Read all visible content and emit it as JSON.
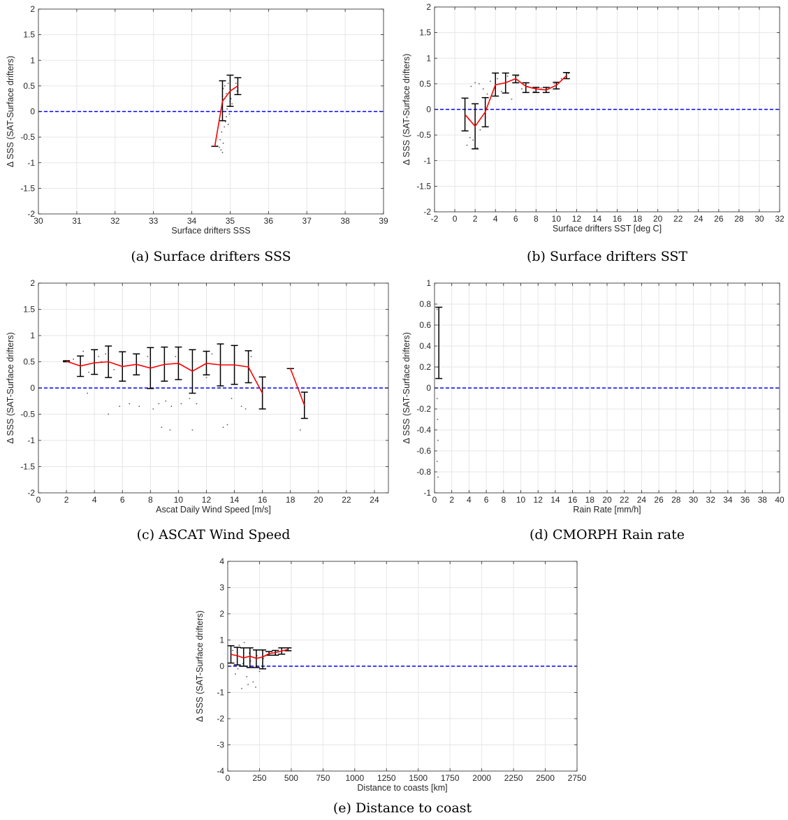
{
  "colors": {
    "mean_line": "#ff0000",
    "zero_line": "#0000ff",
    "error_bar": "#000000",
    "scatter": "#555555",
    "grid": "#e6e6e6",
    "axis": "#262626"
  },
  "chart_data": [
    {
      "id": "a",
      "type": "line",
      "caption": "(a) Surface drifters SSS",
      "xlabel": "Surface drifters SSS",
      "ylabel": "Δ SSS (SAT-Surface drifters)",
      "xlim": [
        30,
        39
      ],
      "ylim": [
        -2,
        2
      ],
      "xticks": [
        30,
        31,
        32,
        33,
        34,
        35,
        36,
        37,
        38,
        39
      ],
      "yticks": [
        -2,
        -1.5,
        -1,
        -0.5,
        0,
        0.5,
        1,
        1.5,
        2
      ],
      "grid": true,
      "zero_line": true,
      "series": [
        {
          "x": [
            34.6,
            34.8,
            35.0,
            35.2
          ],
          "y": [
            -0.68,
            0.2,
            0.4,
            0.5
          ],
          "err_low": [
            -0.68,
            -0.18,
            0.1,
            0.33
          ],
          "err_high": [
            -0.68,
            0.6,
            0.71,
            0.66
          ]
        }
      ],
      "scatter": [
        [
          34.72,
          -0.7
        ],
        [
          34.74,
          -0.55
        ],
        [
          34.76,
          -0.75
        ],
        [
          34.8,
          -0.8
        ],
        [
          34.82,
          -0.62
        ],
        [
          34.78,
          -0.4
        ],
        [
          34.85,
          -0.3
        ],
        [
          34.88,
          -0.2
        ],
        [
          34.9,
          -0.1
        ],
        [
          34.92,
          0.05
        ],
        [
          34.8,
          0.3
        ],
        [
          34.82,
          0.45
        ],
        [
          34.86,
          0.5
        ],
        [
          34.9,
          0.35
        ],
        [
          34.95,
          0.55
        ],
        [
          35.0,
          0.6
        ],
        [
          35.02,
          0.25
        ],
        [
          35.05,
          0.15
        ],
        [
          35.1,
          0.45
        ],
        [
          35.15,
          0.55
        ],
        [
          35.18,
          0.4
        ],
        [
          34.95,
          -0.25
        ],
        [
          34.98,
          -0.05
        ],
        [
          35.0,
          0.2
        ]
      ]
    },
    {
      "id": "b",
      "type": "line",
      "caption": "(b) Surface drifters SST",
      "xlabel": "Surface drifters SST [deg C]",
      "ylabel": "Δ SSS (SAT-Surface drifters)",
      "xlim": [
        -2,
        32
      ],
      "ylim": [
        -2,
        2
      ],
      "xticks": [
        -2,
        0,
        2,
        4,
        6,
        8,
        10,
        12,
        14,
        16,
        18,
        20,
        22,
        24,
        26,
        28,
        30,
        32
      ],
      "yticks": [
        -2,
        -1.5,
        -1,
        -0.5,
        0,
        0.5,
        1,
        1.5,
        2
      ],
      "grid": true,
      "zero_line": true,
      "series": [
        {
          "x": [
            1,
            2,
            3,
            4,
            5,
            6,
            7,
            8,
            9,
            10,
            11
          ],
          "y": [
            -0.1,
            -0.33,
            -0.05,
            0.48,
            0.52,
            0.6,
            0.45,
            0.4,
            0.38,
            0.47,
            0.66
          ],
          "err_low": [
            -0.42,
            -0.77,
            -0.34,
            0.26,
            0.32,
            0.52,
            0.33,
            0.33,
            0.33,
            0.4,
            0.6
          ],
          "err_high": [
            0.22,
            0.11,
            0.23,
            0.71,
            0.71,
            0.67,
            0.52,
            0.43,
            0.43,
            0.53,
            0.72
          ]
        }
      ],
      "scatter": [
        [
          1.2,
          -0.7
        ],
        [
          1.5,
          -0.55
        ],
        [
          1.8,
          -0.6
        ],
        [
          2.2,
          -0.75
        ],
        [
          2.5,
          -0.4
        ],
        [
          1.6,
          0.45
        ],
        [
          2.0,
          0.52
        ],
        [
          2.4,
          0.5
        ],
        [
          2.8,
          0.4
        ],
        [
          3.2,
          0.3
        ],
        [
          3.5,
          0.55
        ],
        [
          4.2,
          0.6
        ],
        [
          4.6,
          0.35
        ],
        [
          5.2,
          0.65
        ],
        [
          5.6,
          0.2
        ],
        [
          6.2,
          0.65
        ],
        [
          6.6,
          0.4
        ],
        [
          7.2,
          0.45
        ],
        [
          7.8,
          0.35
        ],
        [
          8.5,
          0.42
        ],
        [
          9.2,
          0.4
        ],
        [
          9.8,
          0.5
        ],
        [
          10.5,
          0.6
        ],
        [
          11.2,
          0.7
        ],
        [
          1.4,
          -0.2
        ],
        [
          3.0,
          -0.15
        ]
      ]
    },
    {
      "id": "c",
      "type": "line",
      "caption": "(c) ASCAT Wind Speed",
      "xlabel": "Ascat Daily Wind Speed [m/s]",
      "ylabel": "Δ SSS (SAT-Surface drifters)",
      "xlim": [
        0,
        25
      ],
      "ylim": [
        -2,
        2
      ],
      "xticks": [
        0,
        2,
        4,
        6,
        8,
        10,
        12,
        14,
        16,
        18,
        20,
        22,
        24
      ],
      "yticks": [
        -2,
        -1.5,
        -1,
        -0.5,
        0,
        0.5,
        1,
        1.5,
        2
      ],
      "grid": true,
      "zero_line": true,
      "series": [
        {
          "x": [
            2,
            3,
            4,
            5,
            6,
            7,
            8,
            9,
            10,
            11,
            12,
            13,
            14,
            15,
            16
          ],
          "y": [
            0.51,
            0.42,
            0.48,
            0.5,
            0.41,
            0.45,
            0.38,
            0.45,
            0.47,
            0.32,
            0.47,
            0.44,
            0.44,
            0.4,
            -0.1
          ],
          "err_low": [
            0.5,
            0.22,
            0.26,
            0.2,
            0.13,
            0.25,
            -0.01,
            0.13,
            0.16,
            -0.1,
            0.25,
            0.04,
            0.07,
            0.1,
            -0.4
          ],
          "err_high": [
            0.52,
            0.61,
            0.73,
            0.8,
            0.69,
            0.65,
            0.77,
            0.78,
            0.78,
            0.73,
            0.7,
            0.84,
            0.81,
            0.71,
            0.21
          ]
        },
        {
          "x": [
            18,
            19
          ],
          "y": [
            0.37,
            -0.33
          ],
          "err_low": [
            0.37,
            -0.58
          ],
          "err_high": [
            0.37,
            -0.08
          ]
        }
      ],
      "scatter": [
        [
          2.5,
          0.55
        ],
        [
          3.2,
          0.7
        ],
        [
          3.6,
          0.3
        ],
        [
          4.3,
          0.6
        ],
        [
          4.8,
          0.65
        ],
        [
          5.4,
          0.35
        ],
        [
          5.0,
          -0.5
        ],
        [
          5.8,
          -0.35
        ],
        [
          6.5,
          -0.3
        ],
        [
          7.2,
          -0.35
        ],
        [
          7.8,
          0.6
        ],
        [
          8.2,
          -0.4
        ],
        [
          8.6,
          -0.3
        ],
        [
          9.1,
          -0.25
        ],
        [
          9.5,
          -0.35
        ],
        [
          10.2,
          -0.3
        ],
        [
          10.8,
          -0.2
        ],
        [
          11.3,
          -0.3
        ],
        [
          8.8,
          -0.75
        ],
        [
          9.4,
          -0.8
        ],
        [
          11.0,
          -0.8
        ],
        [
          13.2,
          -0.75
        ],
        [
          13.5,
          -0.7
        ],
        [
          12.4,
          0.65
        ],
        [
          13.8,
          -0.2
        ],
        [
          14.5,
          -0.35
        ],
        [
          15.2,
          0.6
        ],
        [
          18.7,
          -0.8
        ],
        [
          3.5,
          -0.1
        ],
        [
          4.5,
          0.5
        ],
        [
          6.0,
          0.55
        ],
        [
          9.8,
          0.6
        ],
        [
          12.0,
          0.2
        ],
        [
          14.8,
          -0.4
        ]
      ]
    },
    {
      "id": "d",
      "type": "line",
      "caption": "(d) CMORPH Rain rate",
      "xlabel": "Rain Rate [mm/h]",
      "ylabel": "Δ SSS (SAT-Surface drifters)",
      "xlim": [
        0,
        40
      ],
      "ylim": [
        -1,
        1
      ],
      "xticks": [
        0,
        2,
        4,
        6,
        8,
        10,
        12,
        14,
        16,
        18,
        20,
        22,
        24,
        26,
        28,
        30,
        32,
        34,
        36,
        38,
        40
      ],
      "yticks": [
        -1,
        -0.8,
        -0.6,
        -0.4,
        -0.2,
        0,
        0.2,
        0.4,
        0.6,
        0.8,
        1
      ],
      "grid": true,
      "zero_line": true,
      "series": [
        {
          "x": [
            0.5
          ],
          "y": [
            0.43
          ],
          "err_low": [
            0.09
          ],
          "err_high": [
            0.77
          ]
        }
      ],
      "scatter": [
        [
          0.3,
          -0.1
        ],
        [
          0.35,
          -0.3
        ],
        [
          0.4,
          -0.5
        ],
        [
          0.3,
          -0.7
        ],
        [
          0.45,
          0.6
        ],
        [
          0.35,
          0.2
        ],
        [
          0.4,
          -0.85
        ],
        [
          0.3,
          0.75
        ]
      ]
    },
    {
      "id": "e",
      "type": "line",
      "caption": "(e) Distance to coast",
      "xlabel": "Distance to coasts [km]",
      "ylabel": "Δ SSS (SAT-Surface drifters)",
      "xlim": [
        0,
        2750
      ],
      "ylim": [
        -4,
        4
      ],
      "xticks": [
        0,
        250,
        500,
        750,
        1000,
        1250,
        1500,
        1750,
        2000,
        2250,
        2500,
        2750
      ],
      "yticks": [
        -4,
        -3,
        -2,
        -1,
        0,
        1,
        2,
        3,
        4
      ],
      "grid": true,
      "zero_line": true,
      "series": [
        {
          "x": [
            25,
            75,
            125,
            175,
            225,
            275,
            325,
            375,
            425,
            475
          ],
          "y": [
            0.45,
            0.4,
            0.32,
            0.38,
            0.3,
            0.35,
            0.48,
            0.52,
            0.58,
            0.64
          ],
          "err_low": [
            0.12,
            0.05,
            0.0,
            -0.05,
            -0.05,
            -0.1,
            0.42,
            0.42,
            0.46,
            0.59
          ],
          "err_high": [
            0.78,
            0.72,
            0.7,
            0.7,
            0.62,
            0.62,
            0.56,
            0.6,
            0.7,
            0.7
          ]
        }
      ],
      "scatter": [
        [
          40,
          0.6
        ],
        [
          90,
          0.8
        ],
        [
          130,
          0.9
        ],
        [
          170,
          0.5
        ],
        [
          200,
          -0.6
        ],
        [
          220,
          -0.8
        ],
        [
          160,
          -0.7
        ],
        [
          110,
          -0.85
        ],
        [
          60,
          -0.3
        ],
        [
          250,
          -0.2
        ],
        [
          180,
          0.2
        ],
        [
          120,
          0.1
        ],
        [
          230,
          0.4
        ],
        [
          280,
          0.3
        ],
        [
          80,
          -0.1
        ],
        [
          150,
          -0.4
        ]
      ]
    }
  ]
}
